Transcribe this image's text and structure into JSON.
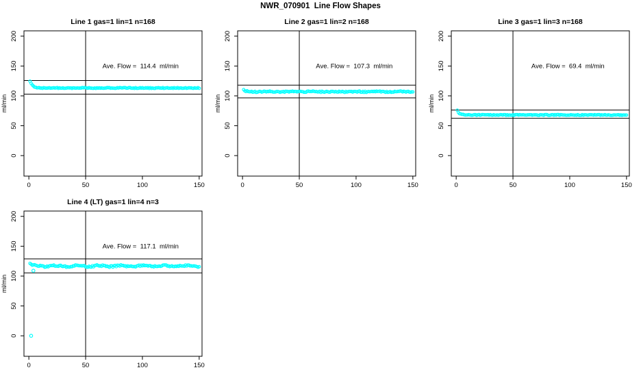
{
  "figure": {
    "title": "NWR_070901  Line Flow Shapes",
    "background": "#FFFFFF",
    "point_color": "#00FFFF",
    "line_color": "#000000"
  },
  "chart_data": [
    {
      "type": "scatter",
      "title": "Line 1 gas=1 lin=1 n=168",
      "annotation": "Ave. Flow =  114.4  ml/min",
      "ave_flow_ml_min": 114.4,
      "n": 168,
      "ylabel": "ml/min",
      "x_ticks": [
        0,
        50,
        100,
        150
      ],
      "y_ticks": [
        0,
        50,
        100,
        150,
        200
      ],
      "xlim": [
        -4.3,
        152.5
      ],
      "ylim": [
        -34.3,
        208.9
      ],
      "vline_x": 50,
      "ref_line_upper": 125.8,
      "ref_line_lower": 103.0,
      "grid": false,
      "series": {
        "name": "flow",
        "flat_value": 113.2,
        "initial_value": 125.2,
        "decay_tau": 2.2,
        "noise": 0.7,
        "wobble": 0.0,
        "x_start": 1,
        "x_end": 150
      },
      "outlier_points": []
    },
    {
      "type": "scatter",
      "title": "Line 2 gas=1 lin=2 n=168",
      "annotation": "Ave. Flow =  107.3  ml/min",
      "ave_flow_ml_min": 107.3,
      "n": 168,
      "ylabel": "ml/min",
      "x_ticks": [
        0,
        50,
        100,
        150
      ],
      "y_ticks": [
        0,
        50,
        100,
        150,
        200
      ],
      "xlim": [
        -4.3,
        152.5
      ],
      "ylim": [
        -34.3,
        208.9
      ],
      "vline_x": 50,
      "ref_line_upper": 118.0,
      "ref_line_lower": 96.6,
      "grid": false,
      "series": {
        "name": "flow",
        "flat_value": 107.0,
        "initial_value": 110.0,
        "decay_tau": 1.5,
        "noise": 1.0,
        "wobble": 0.3,
        "x_start": 1,
        "x_end": 150
      },
      "outlier_points": []
    },
    {
      "type": "scatter",
      "title": "Line 3 gas=1 lin=3 n=168",
      "annotation": "Ave. Flow =  69.4  ml/min",
      "ave_flow_ml_min": 69.4,
      "n": 168,
      "ylabel": "ml/min",
      "x_ticks": [
        0,
        50,
        100,
        150
      ],
      "y_ticks": [
        0,
        50,
        100,
        150,
        200
      ],
      "xlim": [
        -4.3,
        152.5
      ],
      "ylim": [
        -34.3,
        208.9
      ],
      "vline_x": 50,
      "ref_line_upper": 76.3,
      "ref_line_lower": 62.5,
      "grid": false,
      "series": {
        "name": "flow",
        "flat_value": 68.0,
        "initial_value": 75.3,
        "decay_tau": 2.0,
        "noise": 0.7,
        "wobble": 0.0,
        "x_start": 1,
        "x_end": 150
      },
      "outlier_points": []
    },
    {
      "type": "scatter",
      "title": "Line 4 (LT) gas=1 lin=4 n=3",
      "annotation": "Ave. Flow =  117.1  ml/min",
      "ave_flow_ml_min": 117.1,
      "n": 3,
      "ylabel": "ml/min",
      "x_ticks": [
        0,
        50,
        100,
        150
      ],
      "y_ticks": [
        0,
        50,
        100,
        150,
        200
      ],
      "xlim": [
        -4.3,
        152.5
      ],
      "ylim": [
        -34.3,
        208.9
      ],
      "vline_x": 50,
      "ref_line_upper": 128.8,
      "ref_line_lower": 105.4,
      "grid": false,
      "series": {
        "name": "flow",
        "flat_value": 116.8,
        "initial_value": 119.8,
        "decay_tau": 3.0,
        "noise": 1.3,
        "wobble": 0.9,
        "x_start": 1,
        "x_end": 150
      },
      "outlier_points": [
        [
          2,
          0
        ],
        [
          4,
          109
        ]
      ]
    }
  ]
}
